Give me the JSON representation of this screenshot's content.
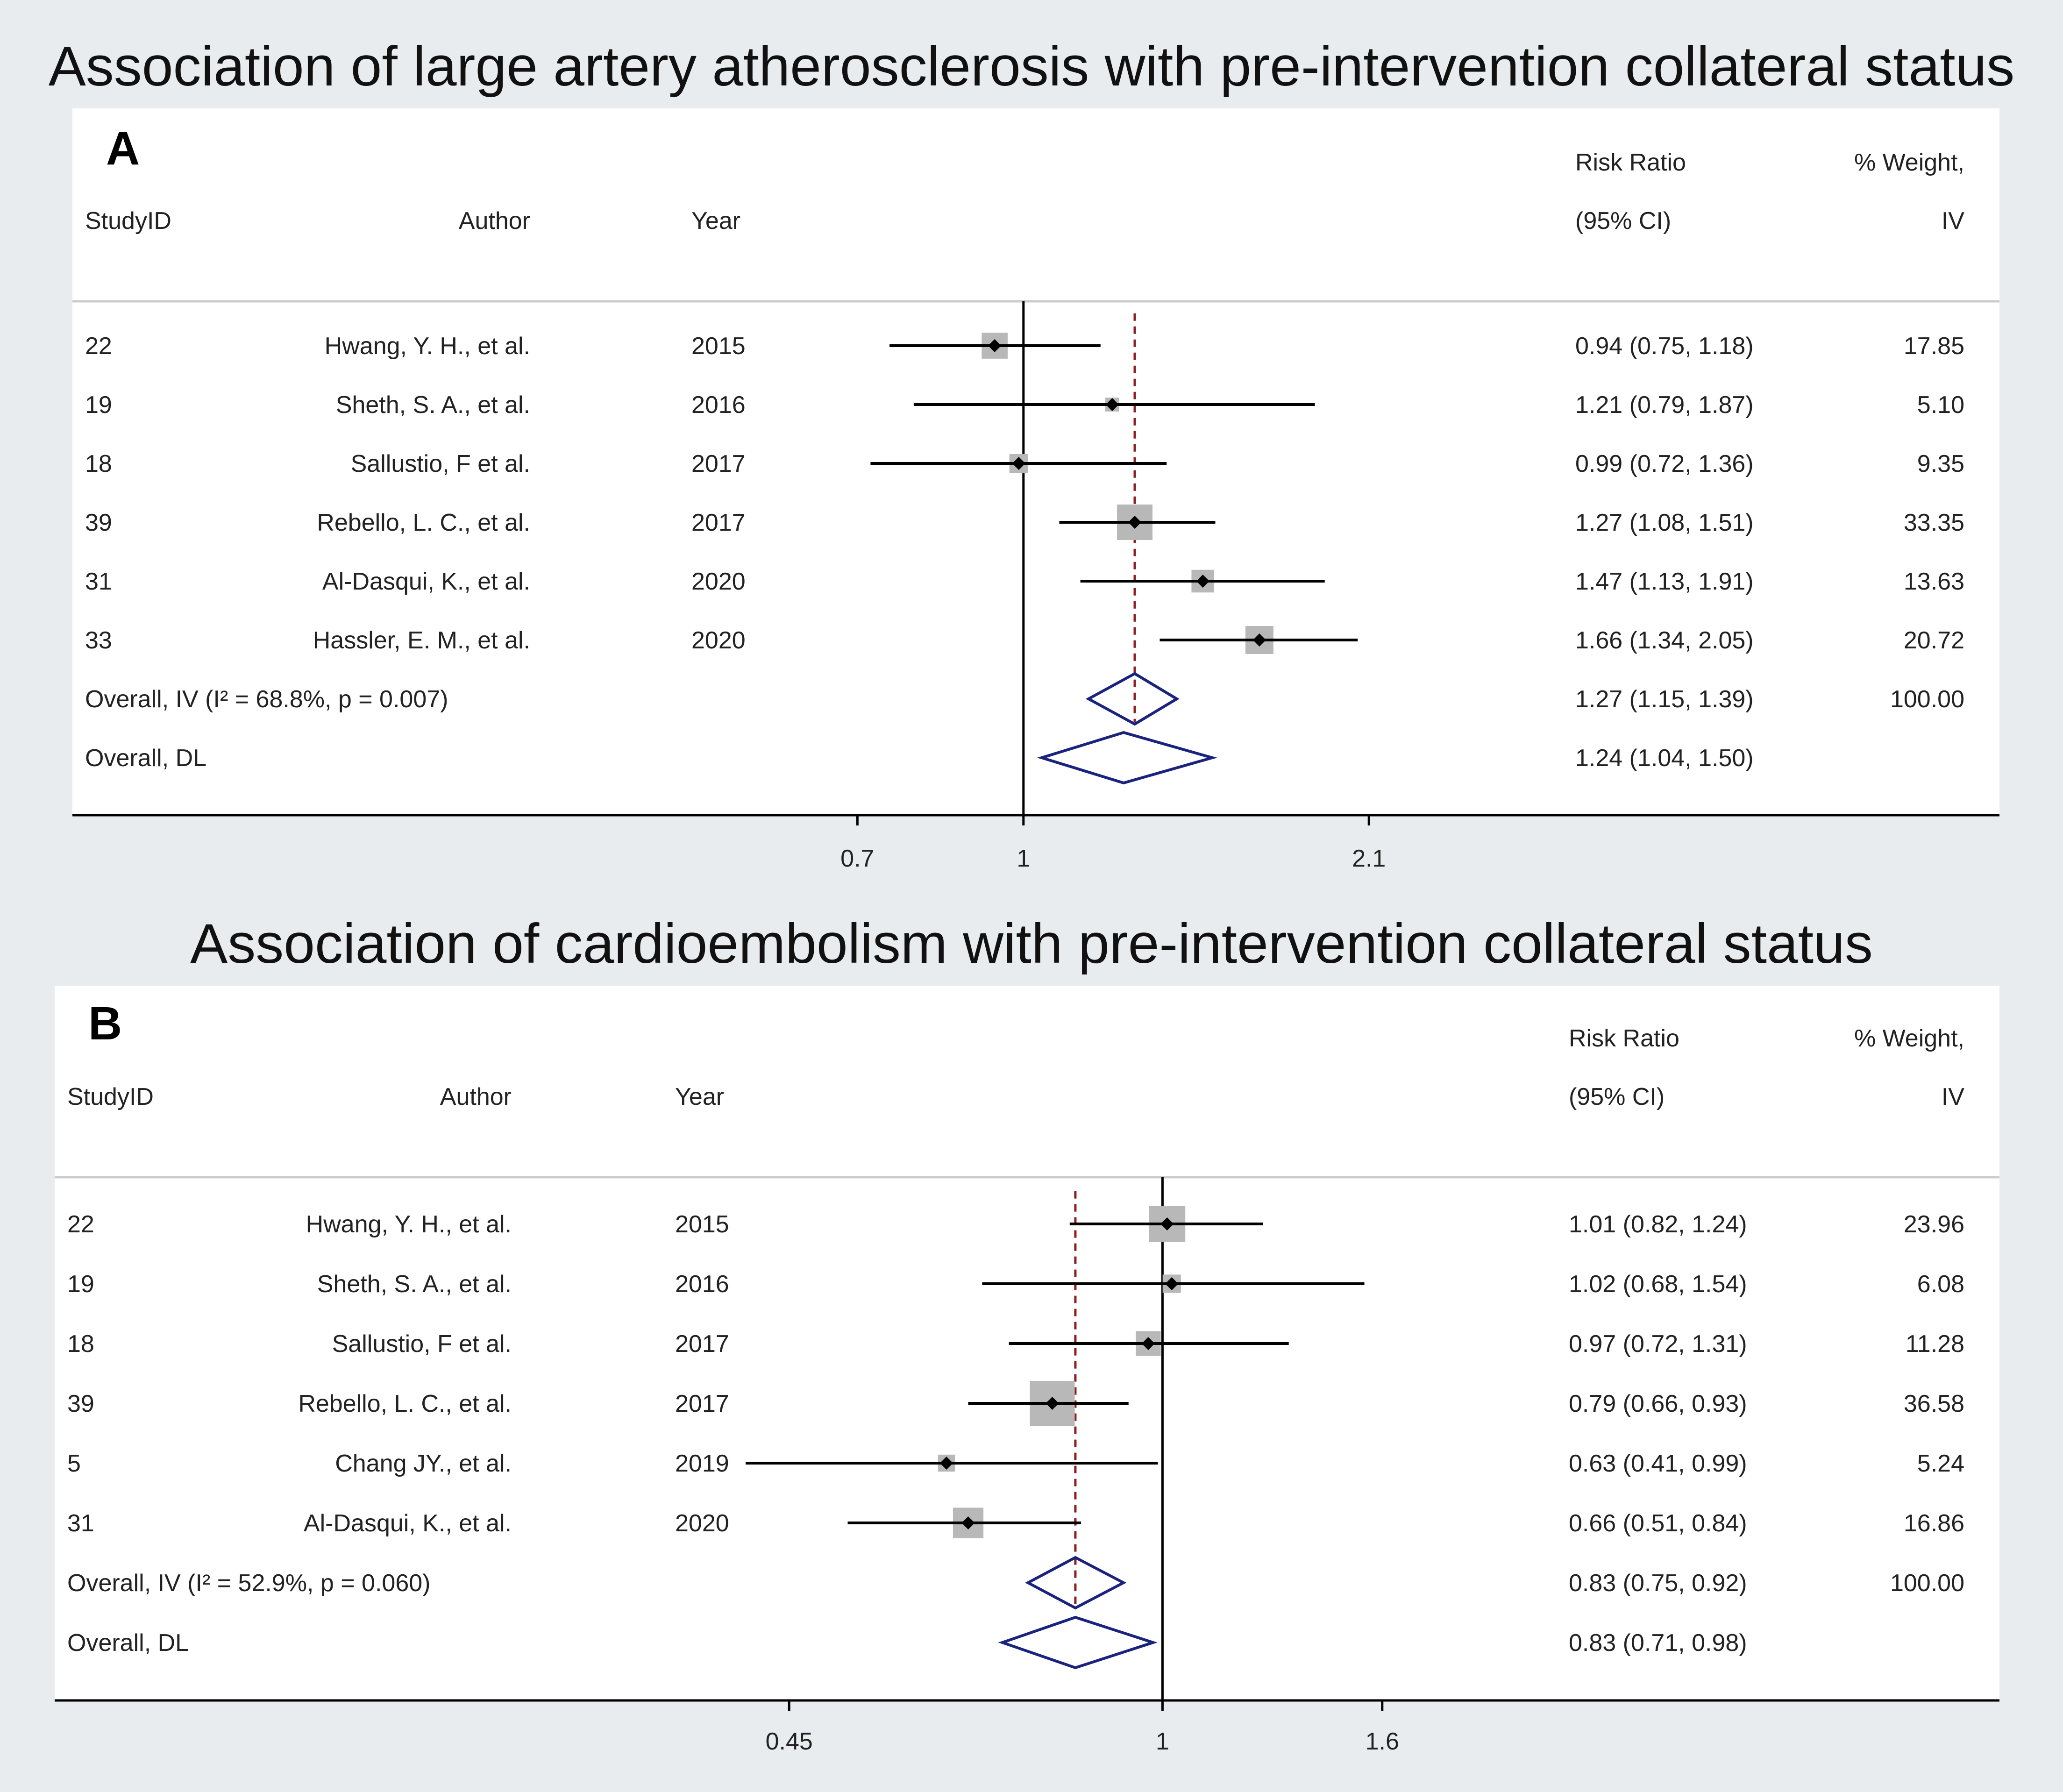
{
  "chart_data": [
    {
      "type": "forest",
      "panel_label": "A",
      "title": "Association of large artery atherosclerosis with pre-intervention collateral status",
      "headers": {
        "studyid": "StudyID",
        "author": "Author",
        "year": "Year",
        "rr_line1": "Risk Ratio",
        "rr_line2": "(95% CI)",
        "weight_line1": "% Weight,",
        "weight_line2": "IV"
      },
      "x_scale": "log",
      "x_range": [
        0.5,
        3.2
      ],
      "x_ticks": [
        {
          "value": 0.7,
          "label": "0.7"
        },
        {
          "value": 1,
          "label": "1"
        },
        {
          "value": 2.1,
          "label": "2.1"
        }
      ],
      "null_line": 1,
      "reference_line": 1.27,
      "studies": [
        {
          "id": "22",
          "author": "Hwang, Y. H., et al.",
          "year": "2015",
          "rr": 0.94,
          "lo": 0.75,
          "hi": 1.18,
          "ci_text": "0.94 (0.75, 1.18)",
          "weight": 17.85,
          "weight_text": "17.85"
        },
        {
          "id": "19",
          "author": "Sheth, S. A., et al.",
          "year": "2016",
          "rr": 1.21,
          "lo": 0.79,
          "hi": 1.87,
          "ci_text": "1.21 (0.79, 1.87)",
          "weight": 5.1,
          "weight_text": "5.10"
        },
        {
          "id": "18",
          "author": "Sallustio, F et al.",
          "year": "2017",
          "rr": 0.99,
          "lo": 0.72,
          "hi": 1.36,
          "ci_text": "0.99 (0.72, 1.36)",
          "weight": 9.35,
          "weight_text": "9.35"
        },
        {
          "id": "39",
          "author": "Rebello, L. C., et al.",
          "year": "2017",
          "rr": 1.27,
          "lo": 1.08,
          "hi": 1.51,
          "ci_text": "1.27 (1.08, 1.51)",
          "weight": 33.35,
          "weight_text": "33.35"
        },
        {
          "id": "31",
          "author": "Al-Dasqui, K., et al.",
          "year": "2020",
          "rr": 1.47,
          "lo": 1.13,
          "hi": 1.91,
          "ci_text": "1.47 (1.13, 1.91)",
          "weight": 13.63,
          "weight_text": "13.63"
        },
        {
          "id": "33",
          "author": "Hassler, E. M., et al.",
          "year": "2020",
          "rr": 1.66,
          "lo": 1.34,
          "hi": 2.05,
          "ci_text": "1.66 (1.34, 2.05)",
          "weight": 20.72,
          "weight_text": "20.72"
        }
      ],
      "overall": [
        {
          "label": "Overall, IV (I² = 68.8%, p = 0.007)",
          "rr": 1.27,
          "lo": 1.15,
          "hi": 1.39,
          "ci_text": "1.27 (1.15, 1.39)",
          "weight_text": "100.00"
        },
        {
          "label": "Overall, DL",
          "rr": 1.24,
          "lo": 1.04,
          "hi": 1.5,
          "ci_text": "1.24 (1.04, 1.50)",
          "weight_text": ""
        }
      ]
    },
    {
      "type": "forest",
      "panel_label": "B",
      "title": "Association of cardioembolism with pre-intervention collateral status",
      "headers": {
        "studyid": "StudyID",
        "author": "Author",
        "year": "Year",
        "rr_line1": "Risk Ratio",
        "rr_line2": "(95% CI)",
        "weight_line1": "% Weight,",
        "weight_line2": "IV"
      },
      "x_scale": "log",
      "x_range": [
        0.38,
        2.25
      ],
      "x_ticks": [
        {
          "value": 0.45,
          "label": "0.45"
        },
        {
          "value": 1,
          "label": "1"
        },
        {
          "value": 1.6,
          "label": "1.6"
        }
      ],
      "null_line": 1,
      "reference_line": 0.83,
      "studies": [
        {
          "id": "22",
          "author": "Hwang, Y. H., et al.",
          "year": "2015",
          "rr": 1.01,
          "lo": 0.82,
          "hi": 1.24,
          "ci_text": "1.01 (0.82, 1.24)",
          "weight": 23.96,
          "weight_text": "23.96"
        },
        {
          "id": "19",
          "author": "Sheth, S. A., et al.",
          "year": "2016",
          "rr": 1.02,
          "lo": 0.68,
          "hi": 1.54,
          "ci_text": "1.02 (0.68, 1.54)",
          "weight": 6.08,
          "weight_text": "6.08"
        },
        {
          "id": "18",
          "author": "Sallustio, F et al.",
          "year": "2017",
          "rr": 0.97,
          "lo": 0.72,
          "hi": 1.31,
          "ci_text": "0.97 (0.72, 1.31)",
          "weight": 11.28,
          "weight_text": "11.28"
        },
        {
          "id": "39",
          "author": "Rebello, L. C., et al.",
          "year": "2017",
          "rr": 0.79,
          "lo": 0.66,
          "hi": 0.93,
          "ci_text": "0.79 (0.66, 0.93)",
          "weight": 36.58,
          "weight_text": "36.58"
        },
        {
          "id": "5",
          "author": "Chang JY., et al.",
          "year": "2019",
          "rr": 0.63,
          "lo": 0.41,
          "hi": 0.99,
          "ci_text": "0.63 (0.41, 0.99)",
          "weight": 5.24,
          "weight_text": "5.24"
        },
        {
          "id": "31",
          "author": "Al-Dasqui, K., et al.",
          "year": "2020",
          "rr": 0.66,
          "lo": 0.51,
          "hi": 0.84,
          "ci_text": "0.66 (0.51, 0.84)",
          "weight": 16.86,
          "weight_text": "16.86"
        }
      ],
      "overall": [
        {
          "label": "Overall, IV (I² = 52.9%, p = 0.060)",
          "rr": 0.83,
          "lo": 0.75,
          "hi": 0.92,
          "ci_text": "0.83 (0.75, 0.92)",
          "weight_text": "100.00"
        },
        {
          "label": "Overall, DL",
          "rr": 0.83,
          "lo": 0.71,
          "hi": 0.98,
          "ci_text": "0.83 (0.71, 0.98)",
          "weight_text": ""
        }
      ]
    }
  ],
  "colors": {
    "square": "#b8b8b8",
    "diamond": "#1a237e",
    "reference_line": "#8b1e1e",
    "ink": "#000000"
  }
}
